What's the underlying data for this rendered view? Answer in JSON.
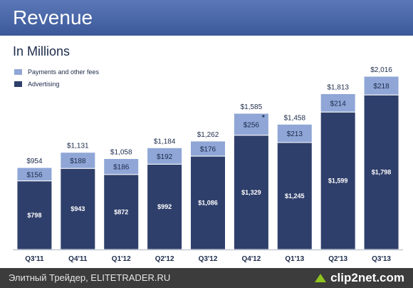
{
  "header": {
    "title": "Revenue"
  },
  "footer": {
    "watermark": "Элитный Трейдер, ELITETRADER.RU",
    "logo_text": "clip2net.com"
  },
  "colors": {
    "header": "#3b5998",
    "advertising": "#2f3f6b",
    "payments": "#8fa6d6",
    "text": "#1b2a4a",
    "footer": "#3c3c3c"
  },
  "chart_data": {
    "type": "bar",
    "stacked": true,
    "subtitle": "In Millions",
    "categories": [
      "Q3'11",
      "Q4'11",
      "Q1'12",
      "Q2'12",
      "Q3'12",
      "Q4'12",
      "Q1'13",
      "Q2'13",
      "Q3'13"
    ],
    "series": [
      {
        "name": "Advertising",
        "values": [
          798,
          943,
          872,
          992,
          1086,
          1329,
          1245,
          1599,
          1798
        ],
        "labels": [
          "$798",
          "$943",
          "$872",
          "$992",
          "$1,086",
          "$1,329",
          "$1,245",
          "$1,599",
          "$1,798"
        ]
      },
      {
        "name": "Payments and other fees",
        "values": [
          156,
          188,
          186,
          192,
          176,
          256,
          213,
          214,
          218
        ],
        "labels": [
          "$156",
          "$188",
          "$186",
          "$192",
          "$176",
          "$256",
          "$213",
          "$214",
          "$218"
        ]
      }
    ],
    "totals": [
      954,
      1131,
      1058,
      1184,
      1262,
      1585,
      1458,
      1813,
      2016
    ],
    "total_labels": [
      "$954",
      "$1,131",
      "$1,058",
      "$1,184",
      "$1,262",
      "$1,585",
      "$1,458",
      "$1,813",
      "$2,016"
    ],
    "annotations": [
      {
        "category": "Q4'12",
        "series": "Payments and other fees",
        "text": "*"
      }
    ],
    "ylim": [
      0,
      2016
    ],
    "legend": "top-left",
    "grid": false
  }
}
